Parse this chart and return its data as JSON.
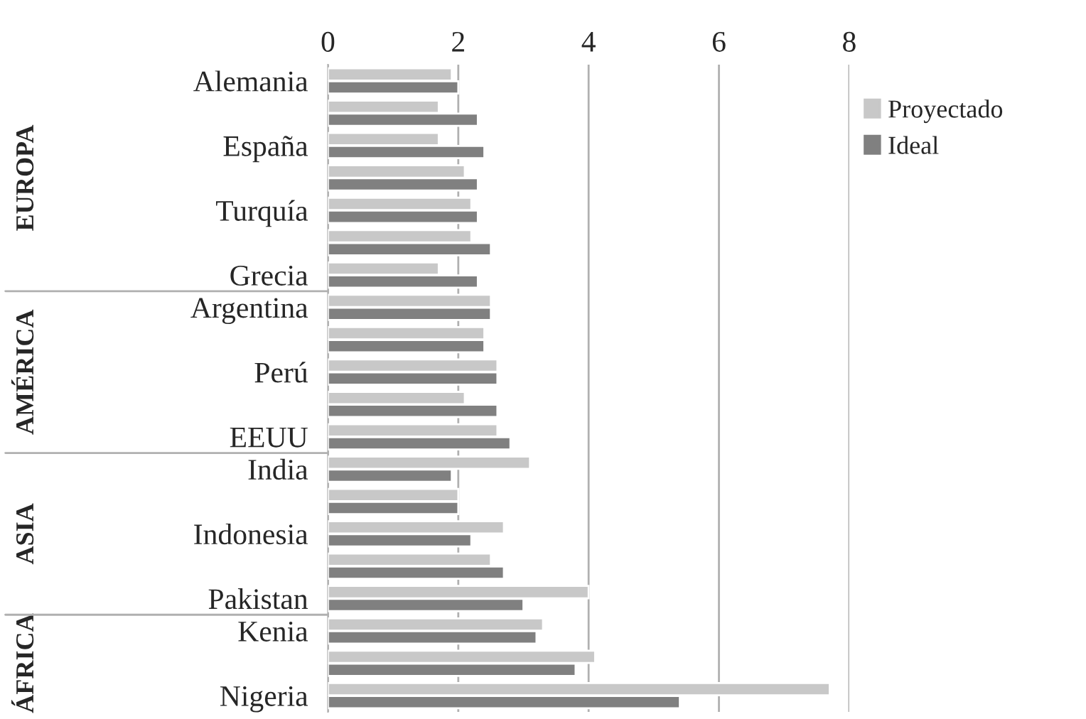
{
  "chart_data": {
    "type": "bar",
    "orientation": "horizontal",
    "categories": [
      "Alemania",
      null,
      "España",
      null,
      "Turquía",
      null,
      "Grecia",
      "Argentina",
      null,
      "Perú",
      null,
      "EEUU",
      "India",
      null,
      "Indonesia",
      null,
      "Pakistan",
      "Kenia",
      null,
      "Nigeria"
    ],
    "series": [
      {
        "name": "Proyectado",
        "color": "#c8c8c8",
        "values": [
          1.9,
          1.7,
          1.7,
          2.1,
          2.2,
          2.2,
          1.7,
          2.5,
          2.4,
          2.6,
          2.1,
          2.6,
          3.1,
          2.0,
          2.7,
          2.5,
          4.0,
          3.3,
          4.1,
          7.7
        ]
      },
      {
        "name": "Ideal",
        "color": "#808080",
        "values": [
          2.0,
          2.3,
          2.4,
          2.3,
          2.3,
          2.5,
          2.3,
          2.5,
          2.4,
          2.6,
          2.6,
          2.8,
          1.9,
          2.0,
          2.2,
          2.7,
          3.0,
          3.2,
          3.8,
          5.4
        ]
      }
    ],
    "xlim": [
      0,
      8
    ],
    "xticks": [
      0,
      2,
      4,
      6,
      8
    ],
    "grid": "x",
    "legend": "top right",
    "annotations": [
      "EUROPA",
      "AMÉRICA",
      "ASIA",
      "ÁFRICA"
    ]
  }
}
